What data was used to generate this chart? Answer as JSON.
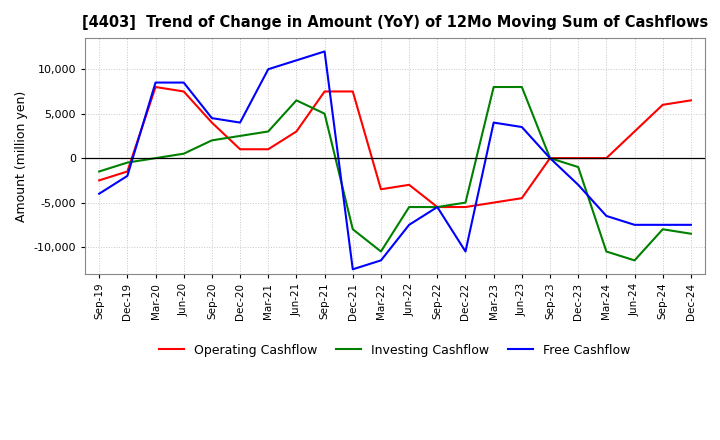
{
  "title": "[4403]  Trend of Change in Amount (YoY) of 12Mo Moving Sum of Cashflows",
  "ylabel": "Amount (million yen)",
  "ylim": [
    -13000,
    13500
  ],
  "yticks": [
    -10000,
    -5000,
    0,
    5000,
    10000
  ],
  "x_labels": [
    "Sep-19",
    "Dec-19",
    "Mar-20",
    "Jun-20",
    "Sep-20",
    "Dec-20",
    "Mar-21",
    "Jun-21",
    "Sep-21",
    "Dec-21",
    "Mar-22",
    "Jun-22",
    "Sep-22",
    "Dec-22",
    "Mar-23",
    "Jun-23",
    "Sep-23",
    "Dec-23",
    "Mar-24",
    "Jun-24",
    "Sep-24",
    "Dec-24"
  ],
  "operating": [
    -2500,
    -1500,
    8000,
    7500,
    4000,
    1000,
    1000,
    3000,
    7500,
    7500,
    -3500,
    -3000,
    -5500,
    -5500,
    -5000,
    -4500,
    0,
    0,
    0,
    3000,
    6000,
    6500
  ],
  "investing": [
    -1500,
    -500,
    0,
    500,
    2000,
    2500,
    3000,
    6500,
    5000,
    -8000,
    -10500,
    -5500,
    -5500,
    -5000,
    8000,
    8000,
    0,
    -1000,
    -10500,
    -11500,
    -8000,
    -8500
  ],
  "free": [
    -4000,
    -2000,
    8500,
    8500,
    4500,
    4000,
    10000,
    11000,
    12000,
    -12500,
    -11500,
    -7500,
    -5500,
    -10500,
    4000,
    3500,
    0,
    -3000,
    -6500,
    -7500,
    -7500,
    -7500
  ],
  "op_color": "#ff0000",
  "inv_color": "#008000",
  "free_color": "#0000ff",
  "legend_labels": [
    "Operating Cashflow",
    "Investing Cashflow",
    "Free Cashflow"
  ],
  "bg_color": "#ffffff",
  "grid_color": "#c8c8c8"
}
